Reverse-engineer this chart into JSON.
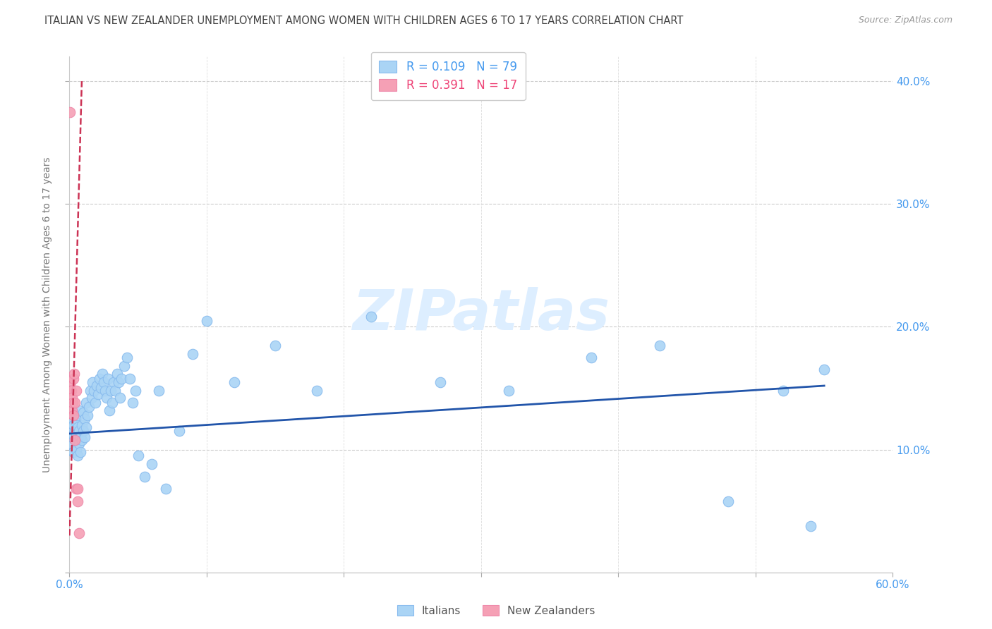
{
  "title": "ITALIAN VS NEW ZEALANDER UNEMPLOYMENT AMONG WOMEN WITH CHILDREN AGES 6 TO 17 YEARS CORRELATION CHART",
  "source": "Source: ZipAtlas.com",
  "ylabel_label": "Unemployment Among Women with Children Ages 6 to 17 years",
  "xlim": [
    0.0,
    0.6
  ],
  "ylim": [
    0.0,
    0.42
  ],
  "title_color": "#444444",
  "source_color": "#999999",
  "blue_color": "#aad4f5",
  "pink_color": "#f5a0b5",
  "trendline_blue": "#2255aa",
  "trendline_pink": "#cc3355",
  "watermark_color": "#ddeeff",
  "legend_r_blue": "#4499ee",
  "legend_r_pink": "#ee4477",
  "R_blue": 0.109,
  "N_blue": 79,
  "R_pink": 0.391,
  "N_pink": 17,
  "italians_x": [
    0.001,
    0.001,
    0.002,
    0.002,
    0.002,
    0.003,
    0.003,
    0.003,
    0.004,
    0.004,
    0.005,
    0.005,
    0.005,
    0.006,
    0.006,
    0.006,
    0.007,
    0.007,
    0.007,
    0.008,
    0.008,
    0.009,
    0.009,
    0.01,
    0.01,
    0.011,
    0.011,
    0.012,
    0.012,
    0.013,
    0.014,
    0.015,
    0.016,
    0.017,
    0.018,
    0.019,
    0.02,
    0.021,
    0.022,
    0.023,
    0.024,
    0.025,
    0.026,
    0.027,
    0.028,
    0.029,
    0.03,
    0.031,
    0.032,
    0.033,
    0.035,
    0.036,
    0.037,
    0.038,
    0.04,
    0.042,
    0.044,
    0.046,
    0.048,
    0.05,
    0.055,
    0.06,
    0.065,
    0.07,
    0.08,
    0.09,
    0.1,
    0.12,
    0.15,
    0.18,
    0.22,
    0.27,
    0.32,
    0.38,
    0.43,
    0.48,
    0.52,
    0.54,
    0.55
  ],
  "italians_y": [
    0.115,
    0.105,
    0.118,
    0.11,
    0.125,
    0.112,
    0.098,
    0.12,
    0.108,
    0.115,
    0.1,
    0.113,
    0.122,
    0.095,
    0.118,
    0.128,
    0.105,
    0.115,
    0.132,
    0.11,
    0.098,
    0.12,
    0.108,
    0.115,
    0.13,
    0.125,
    0.11,
    0.138,
    0.118,
    0.128,
    0.135,
    0.148,
    0.142,
    0.155,
    0.148,
    0.138,
    0.152,
    0.145,
    0.158,
    0.15,
    0.162,
    0.155,
    0.148,
    0.142,
    0.158,
    0.132,
    0.148,
    0.138,
    0.155,
    0.148,
    0.162,
    0.155,
    0.142,
    0.158,
    0.168,
    0.175,
    0.158,
    0.138,
    0.148,
    0.095,
    0.078,
    0.088,
    0.148,
    0.068,
    0.115,
    0.178,
    0.205,
    0.155,
    0.185,
    0.148,
    0.208,
    0.155,
    0.148,
    0.175,
    0.185,
    0.058,
    0.148,
    0.038,
    0.165
  ],
  "nz_x": [
    0.0005,
    0.001,
    0.001,
    0.0015,
    0.002,
    0.002,
    0.0025,
    0.003,
    0.003,
    0.0035,
    0.004,
    0.004,
    0.005,
    0.005,
    0.006,
    0.006,
    0.007
  ],
  "nz_y": [
    0.375,
    0.155,
    0.148,
    0.148,
    0.142,
    0.132,
    0.138,
    0.158,
    0.128,
    0.162,
    0.138,
    0.108,
    0.148,
    0.068,
    0.068,
    0.058,
    0.032
  ]
}
